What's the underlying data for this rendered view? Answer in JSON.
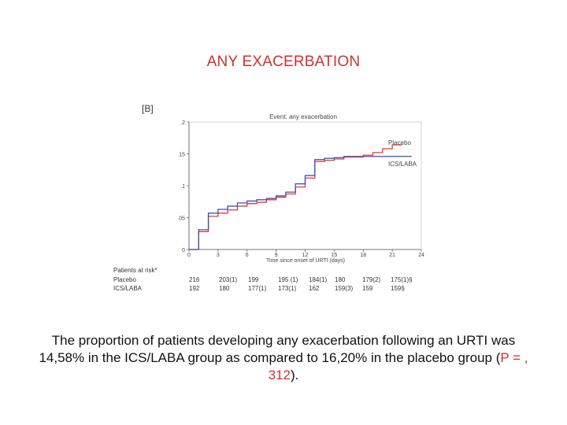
{
  "slide": {
    "title": "ANY EXACERBATION",
    "caption_part1": "The proportion of patients developing any exacerbation following an URTI was 14,58% in the ICS/LABA group as compared to 16,20% in the placebo group (",
    "caption_pvalue": "P = , 312",
    "caption_part2": ")."
  },
  "chart_data": {
    "type": "line",
    "panel_label": "[B]",
    "title": "Event: any exacerbation",
    "xlabel": "Time since onset of URTI (days)",
    "ylabel": "",
    "xlim": [
      0,
      24
    ],
    "ylim": [
      0,
      0.2
    ],
    "x_ticks": [
      "0",
      "3",
      "6",
      "9",
      "12",
      "15",
      "18",
      "21",
      "24"
    ],
    "y_ticks": [
      "0",
      ".05",
      ".1",
      ".15",
      ".2"
    ],
    "colors": {
      "placebo": "#e53935",
      "ics_laba": "#3f51b5"
    },
    "series": [
      {
        "name": "Placebo",
        "step_x": [
          0,
          1,
          2,
          3,
          4,
          5,
          6,
          7,
          8,
          9,
          10,
          11,
          12,
          13,
          14,
          15,
          16,
          17,
          18,
          19,
          20,
          21
        ],
        "step_y": [
          0,
          0.028,
          0.052,
          0.057,
          0.062,
          0.068,
          0.072,
          0.074,
          0.078,
          0.082,
          0.087,
          0.098,
          0.112,
          0.138,
          0.14,
          0.142,
          0.145,
          0.145,
          0.148,
          0.152,
          0.158,
          0.164
        ]
      },
      {
        "name": "ICS/LABA",
        "step_x": [
          0,
          1,
          2,
          3,
          4,
          5,
          6,
          7,
          8,
          9,
          10,
          11,
          12,
          13,
          14,
          15,
          16,
          17,
          18,
          19,
          20,
          21,
          22
        ],
        "step_y": [
          0,
          0.031,
          0.057,
          0.063,
          0.068,
          0.073,
          0.076,
          0.078,
          0.08,
          0.084,
          0.09,
          0.103,
          0.116,
          0.141,
          0.143,
          0.144,
          0.146,
          0.146,
          0.146,
          0.146,
          0.146,
          0.146,
          0.146
        ]
      }
    ],
    "risk_table": {
      "header": "Patients at risk*",
      "rows": [
        {
          "label": "Placebo",
          "values": [
            "216",
            "203(1)",
            "199",
            "195 (1)",
            "184(1)",
            "180",
            "179(2)",
            "175(1)§"
          ]
        },
        {
          "label": "ICS/LABA",
          "values": [
            "192",
            "180",
            "177(1)",
            "173(1)",
            "162",
            "159(3)",
            "159",
            "159§"
          ]
        }
      ]
    }
  }
}
